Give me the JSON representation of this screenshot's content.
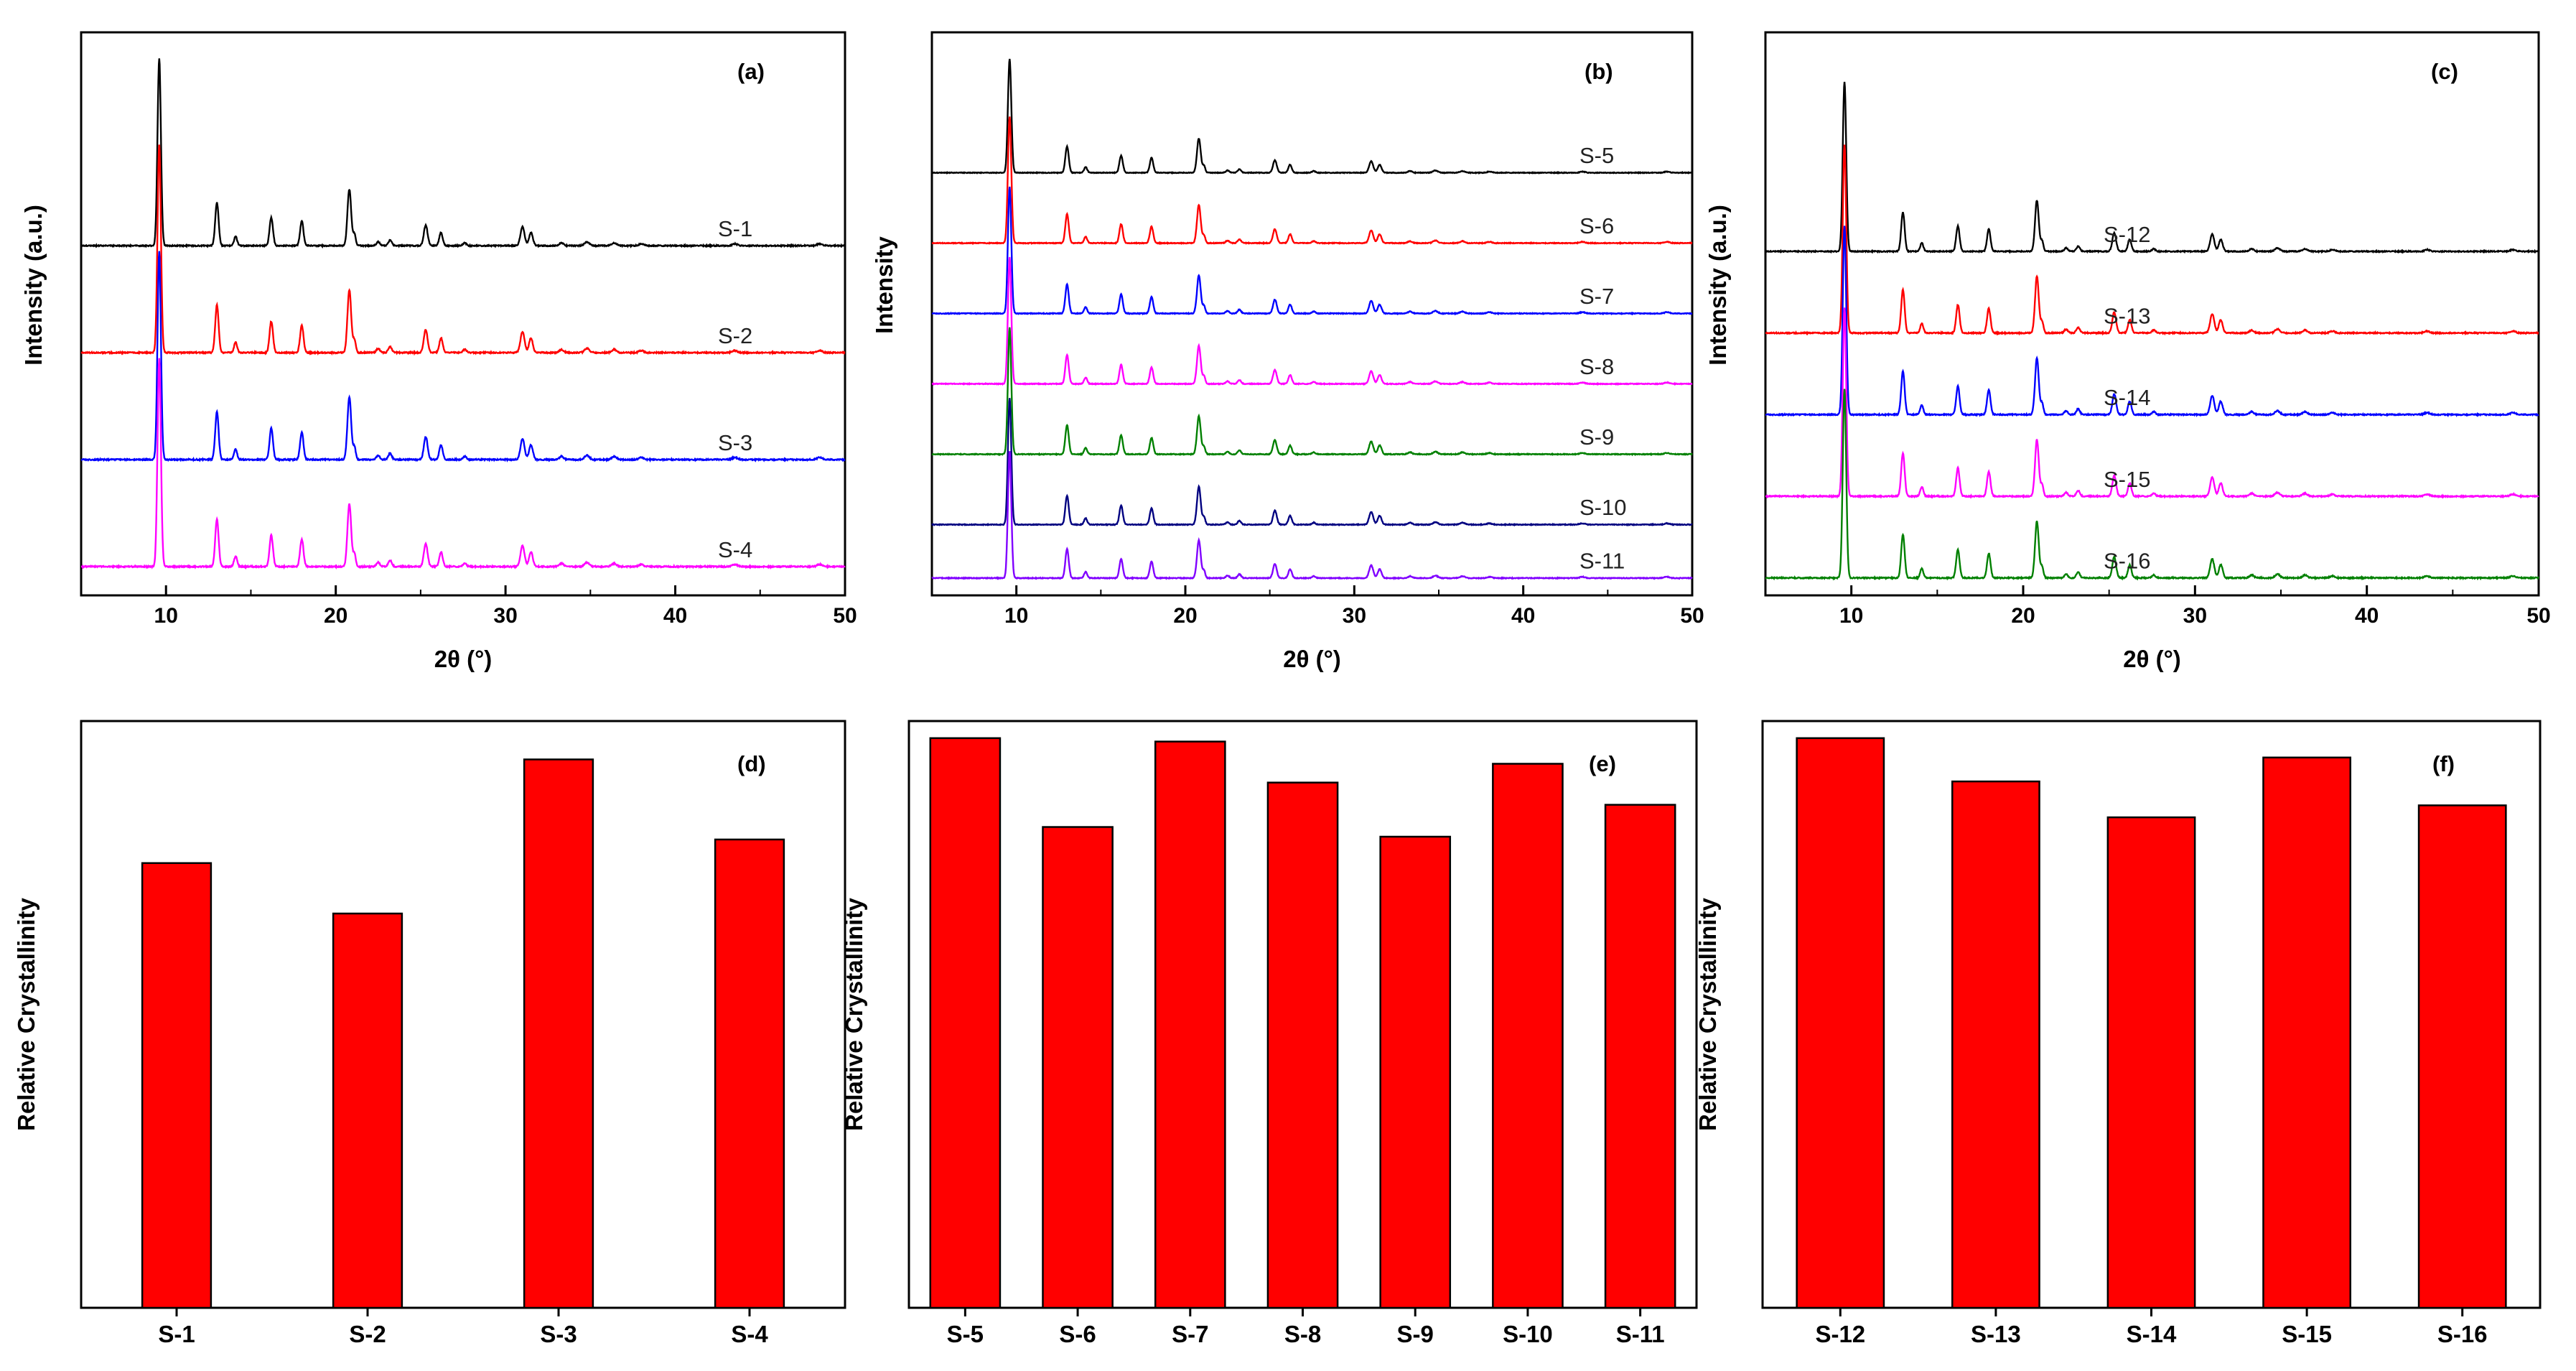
{
  "colors": {
    "black": "#000000",
    "red": "#ff0000",
    "blue": "#0000ff",
    "magenta": "#ff00ff",
    "green": "#008000",
    "navy": "#000080",
    "violet": "#8000ff",
    "bar": "#ff0000"
  },
  "chart_data": [
    {
      "panel": "(a)",
      "type": "line",
      "xlabel": "2θ (°)",
      "ylabel": "Intensity (a.u.)",
      "xlim": [
        5,
        50
      ],
      "xticks": [
        10,
        20,
        30,
        40,
        50
      ],
      "series": [
        {
          "name": "S-1",
          "color": "black",
          "offset": 0.62
        },
        {
          "name": "S-2",
          "color": "red",
          "offset": 0.43
        },
        {
          "name": "S-3",
          "color": "blue",
          "offset": 0.24
        },
        {
          "name": "S-4",
          "color": "magenta",
          "offset": 0.05
        }
      ]
    },
    {
      "panel": "(b)",
      "type": "line",
      "xlabel": "2θ (°)",
      "ylabel": "Intensity",
      "xlim": [
        5,
        50
      ],
      "xticks": [
        10,
        20,
        30,
        40,
        50
      ],
      "series": [
        {
          "name": "S-5",
          "color": "black",
          "offset": 0.75
        },
        {
          "name": "S-6",
          "color": "red",
          "offset": 0.625
        },
        {
          "name": "S-7",
          "color": "blue",
          "offset": 0.5
        },
        {
          "name": "S-8",
          "color": "magenta",
          "offset": 0.375
        },
        {
          "name": "S-9",
          "color": "green",
          "offset": 0.25
        },
        {
          "name": "S-10",
          "color": "navy",
          "offset": 0.125
        },
        {
          "name": "S-11",
          "color": "violet",
          "offset": 0.03
        }
      ]
    },
    {
      "panel": "(c)",
      "type": "line",
      "xlabel": "2θ (°)",
      "ylabel": "Intensity (a.u.)",
      "xlim": [
        5,
        50
      ],
      "xticks": [
        10,
        20,
        30,
        40,
        50
      ],
      "series": [
        {
          "name": "S-12",
          "color": "black",
          "offset": 0.61
        },
        {
          "name": "S-13",
          "color": "red",
          "offset": 0.465
        },
        {
          "name": "S-14",
          "color": "blue",
          "offset": 0.32
        },
        {
          "name": "S-15",
          "color": "magenta",
          "offset": 0.175
        },
        {
          "name": "S-16",
          "color": "green",
          "offset": 0.03
        }
      ]
    },
    {
      "panel": "(d)",
      "type": "bar",
      "ylabel": "Relative Crystallinity",
      "categories": [
        "S-1",
        "S-2",
        "S-3",
        "S-4"
      ],
      "values": [
        0.811,
        0.719,
        1.0,
        0.854
      ],
      "ylim": [
        0,
        1.07
      ]
    },
    {
      "panel": "(e)",
      "type": "bar",
      "ylabel": "Relative Crystallinity",
      "categories": [
        "S-5",
        "S-6",
        "S-7",
        "S-8",
        "S-9",
        "S-10",
        "S-11"
      ],
      "values": [
        1.0,
        0.844,
        0.994,
        0.922,
        0.827,
        0.955,
        0.883
      ],
      "ylim": [
        0,
        1.03
      ]
    },
    {
      "panel": "(f)",
      "type": "bar",
      "ylabel": "Relative Crystallinity",
      "categories": [
        "S-12",
        "S-13",
        "S-14",
        "S-15",
        "S-16"
      ],
      "values": [
        1.0,
        0.924,
        0.861,
        0.966,
        0.882
      ],
      "ylim": [
        0,
        1.03
      ]
    }
  ]
}
